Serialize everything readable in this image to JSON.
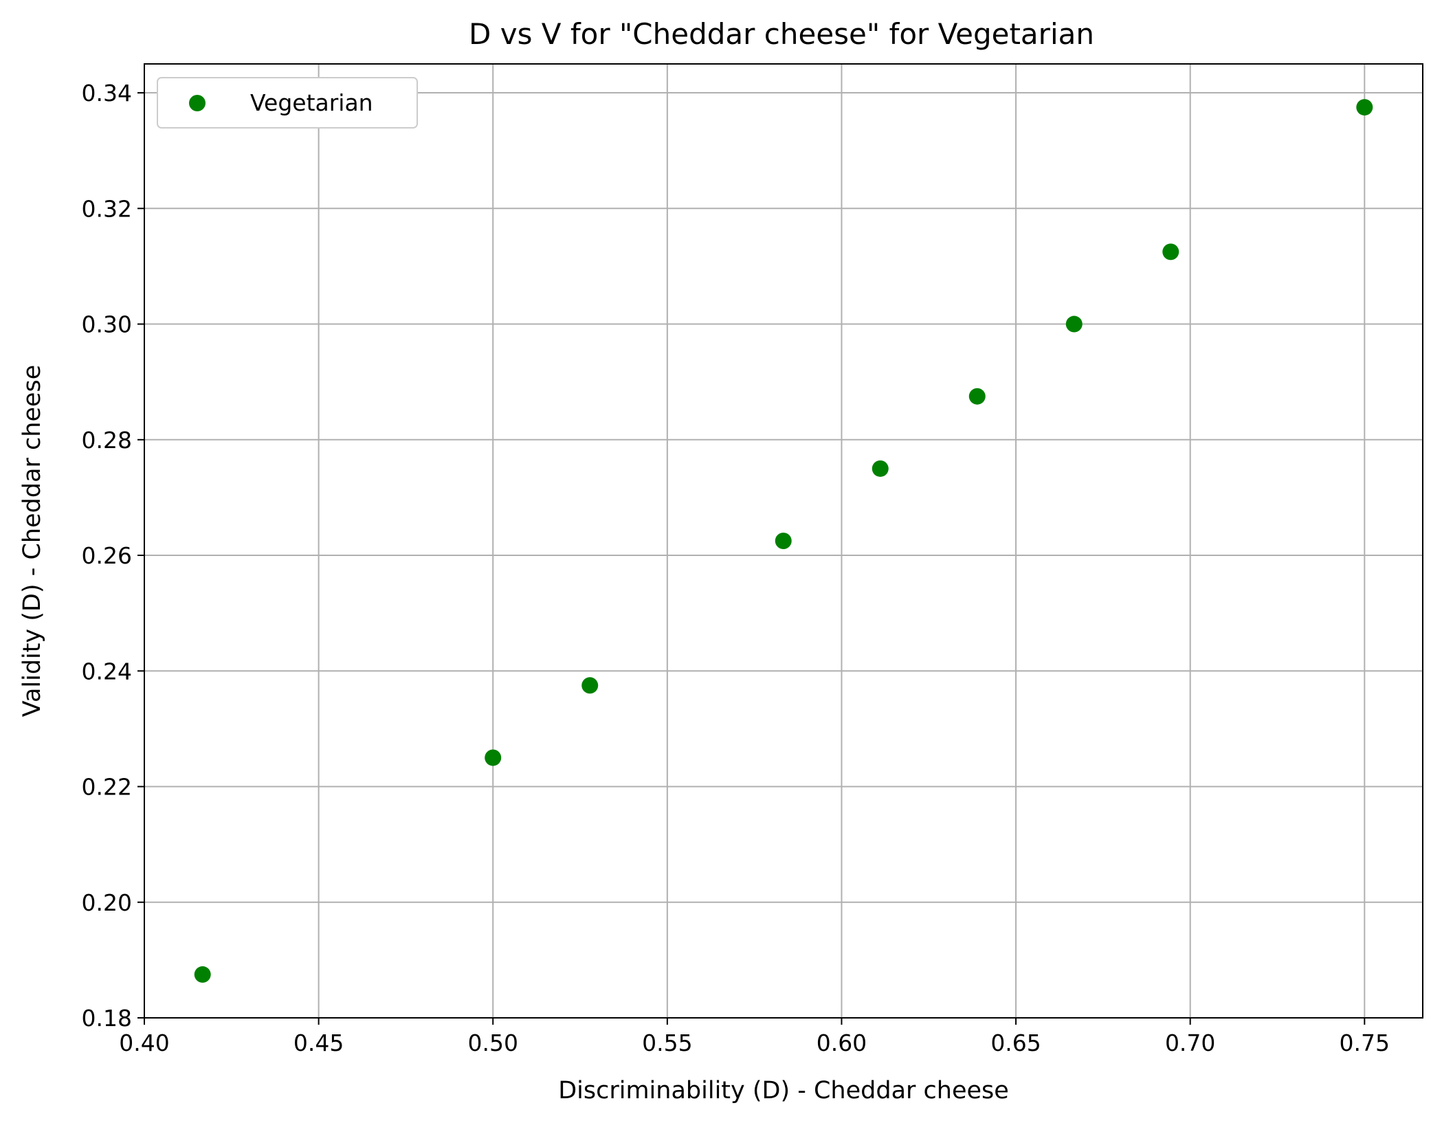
{
  "chart_data": {
    "type": "scatter",
    "title": "D vs V for \"Cheddar cheese\" for Vegetarian",
    "xlabel": "Discriminability (D) - Cheddar cheese",
    "ylabel": "Validity (D) - Cheddar cheese",
    "xlim": [
      0.4,
      0.7667
    ],
    "ylim": [
      0.18,
      0.345
    ],
    "x_ticks": [
      "0.40",
      "0.45",
      "0.50",
      "0.55",
      "0.60",
      "0.65",
      "0.70",
      "0.75"
    ],
    "y_ticks": [
      "0.18",
      "0.20",
      "0.22",
      "0.24",
      "0.26",
      "0.28",
      "0.30",
      "0.32",
      "0.34"
    ],
    "grid": true,
    "legend_position": "top-left",
    "series": [
      {
        "name": "Vegetarian",
        "color": "#008000",
        "points": [
          {
            "x": 0.4167,
            "y": 0.1875
          },
          {
            "x": 0.5,
            "y": 0.225
          },
          {
            "x": 0.5278,
            "y": 0.2375
          },
          {
            "x": 0.5833,
            "y": 0.2625
          },
          {
            "x": 0.6111,
            "y": 0.275
          },
          {
            "x": 0.6389,
            "y": 0.2875
          },
          {
            "x": 0.6667,
            "y": 0.3
          },
          {
            "x": 0.6944,
            "y": 0.3125
          },
          {
            "x": 0.75,
            "y": 0.3375
          }
        ]
      }
    ]
  }
}
